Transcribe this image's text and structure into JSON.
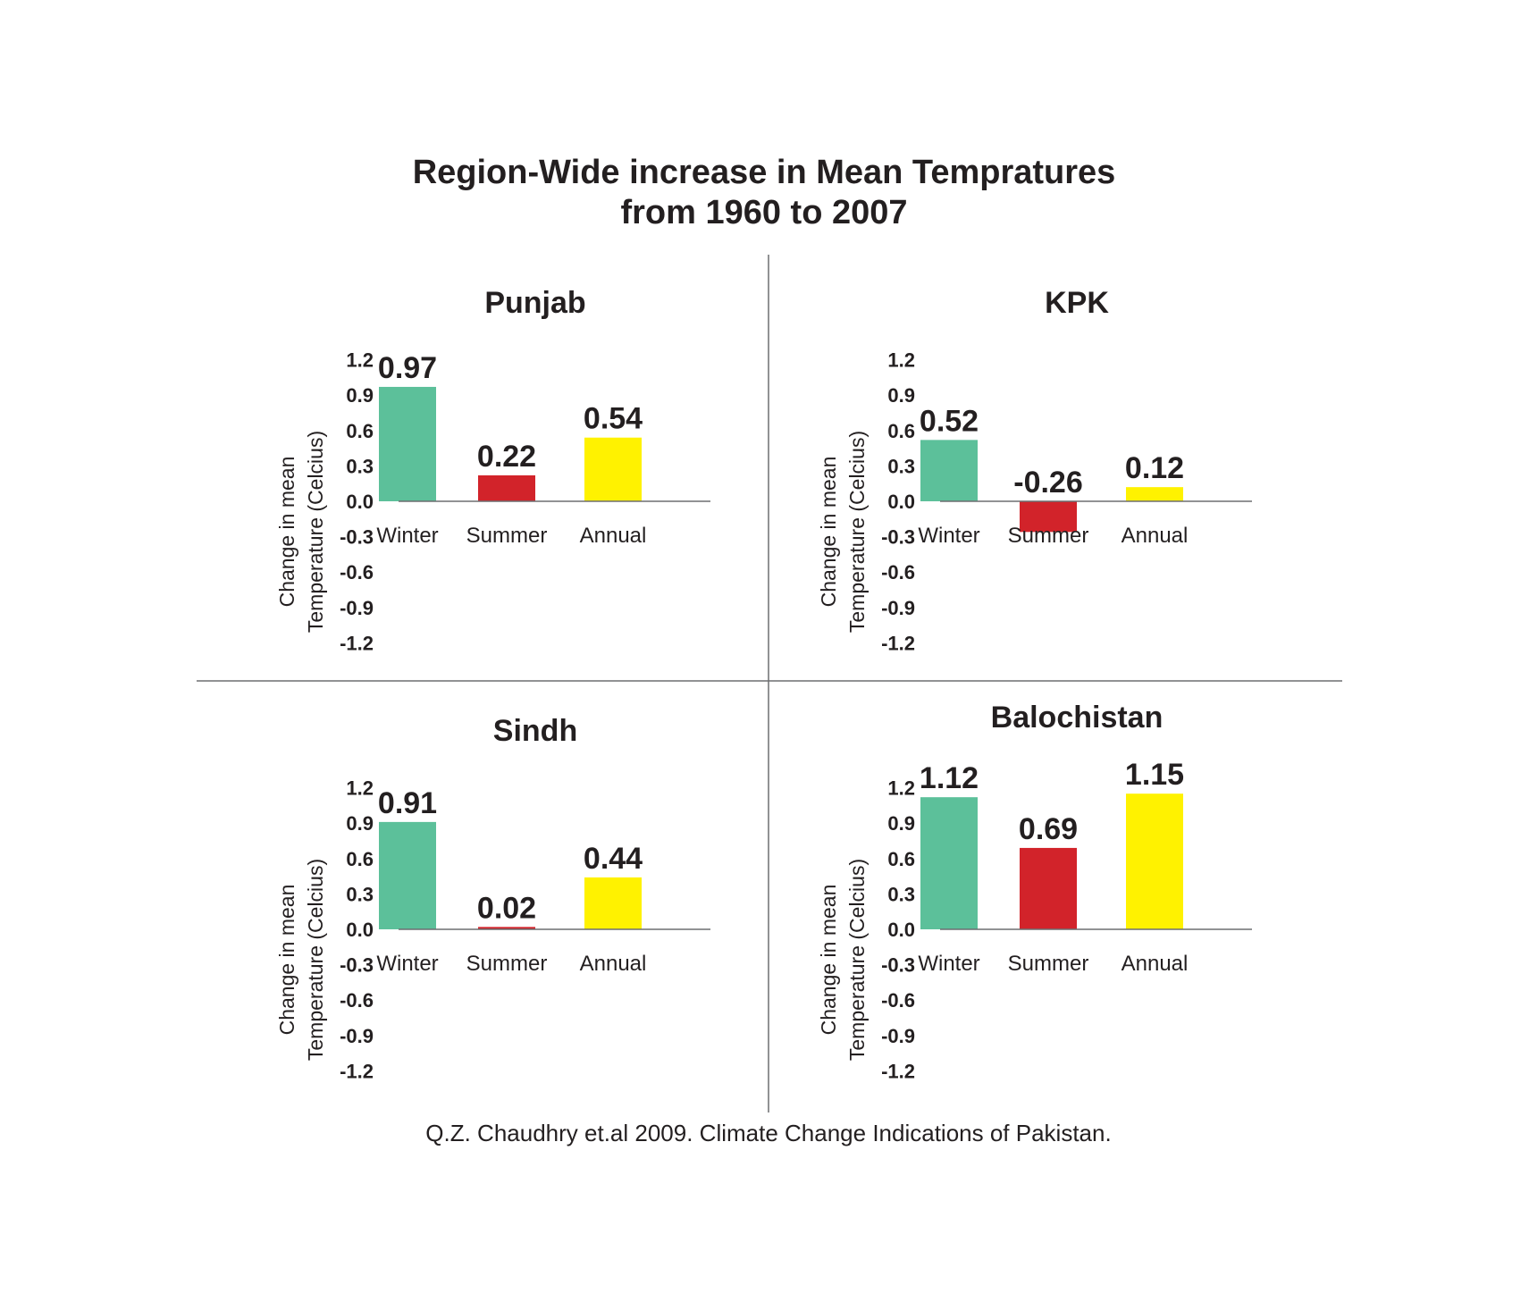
{
  "title_line1": "Region-Wide increase in Mean Tempratures",
  "title_line2": "from 1960 to 2007",
  "source": "Q.Z. Chaudhry et.al 2009. Climate Change Indications of Pakistan.",
  "colors": {
    "Winter": "#5cc09a",
    "Summer": "#d2232a",
    "Annual": "#fff200",
    "text": "#231f20",
    "divider": "#6d6e71"
  },
  "chart_data": [
    {
      "type": "bar",
      "title": "Punjab",
      "categories": [
        "Winter",
        "Summer",
        "Annual"
      ],
      "values": [
        0.97,
        0.22,
        0.54
      ],
      "value_labels": [
        "0.97",
        "0.22",
        "0.54"
      ],
      "yticks": [
        "1.2",
        "0.9",
        "0.6",
        "0.3",
        "0.0",
        "-0.3",
        "-0.6",
        "-0.9",
        "-1.2"
      ],
      "ylabel_line1": "Change in mean",
      "ylabel_line2": "Temperature (Celcius)",
      "ylim": [
        -1.2,
        1.2
      ]
    },
    {
      "type": "bar",
      "title": "KPK",
      "categories": [
        "Winter",
        "Summer",
        "Annual"
      ],
      "values": [
        0.52,
        -0.26,
        0.12
      ],
      "value_labels": [
        "0.52",
        "-0.26",
        "0.12"
      ],
      "yticks": [
        "1.2",
        "0.9",
        "0.6",
        "0.3",
        "0.0",
        "-0.3",
        "-0.6",
        "-0.9",
        "-1.2"
      ],
      "ylabel_line1": "Change in mean",
      "ylabel_line2": "Temperature (Celcius)",
      "ylim": [
        -1.2,
        1.2
      ]
    },
    {
      "type": "bar",
      "title": "Sindh",
      "categories": [
        "Winter",
        "Summer",
        "Annual"
      ],
      "values": [
        0.91,
        0.02,
        0.44
      ],
      "value_labels": [
        "0.91",
        "0.02",
        "0.44"
      ],
      "yticks": [
        "1.2",
        "0.9",
        "0.6",
        "0.3",
        "0.0",
        "-0.3",
        "-0.6",
        "-0.9",
        "-1.2"
      ],
      "ylabel_line1": "Change in mean",
      "ylabel_line2": "Temperature (Celcius)",
      "ylim": [
        -1.2,
        1.2
      ]
    },
    {
      "type": "bar",
      "title": "Balochistan",
      "categories": [
        "Winter",
        "Summer",
        "Annual"
      ],
      "values": [
        1.12,
        0.69,
        1.15
      ],
      "value_labels": [
        "1.12",
        "0.69",
        "1.15"
      ],
      "yticks": [
        "1.2",
        "0.9",
        "0.6",
        "0.3",
        "0.0",
        "-0.3",
        "-0.6",
        "-0.9",
        "-1.2"
      ],
      "ylabel_line1": "Change in mean",
      "ylabel_line2": "Temperature (Celcius)",
      "ylim": [
        -1.2,
        1.2
      ]
    }
  ]
}
